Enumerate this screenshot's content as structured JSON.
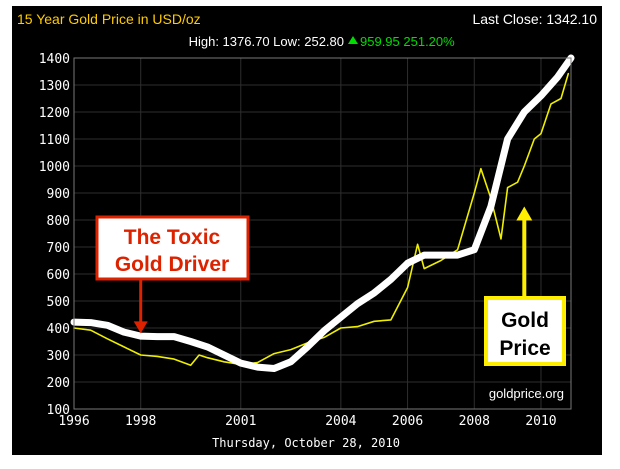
{
  "chart_data": {
    "type": "line",
    "title": "15 Year Gold Price in USD/oz",
    "last_close_label": "Last Close: 1342.10",
    "stats": {
      "high_low": "High: 1376.70 Low: 252.80",
      "change": "959.95 251.20%"
    },
    "date_label": "Thursday, October 28, 2010",
    "watermark": "goldprice.org",
    "x_ticks": [
      1996,
      1998,
      2001,
      2004,
      2006,
      2008,
      2010
    ],
    "y_ticks": [
      100,
      200,
      300,
      400,
      500,
      600,
      700,
      800,
      900,
      1000,
      1100,
      1200,
      1300,
      1400
    ],
    "xlim": [
      1996,
      2010.9
    ],
    "ylim": [
      100,
      1400
    ],
    "grid": true,
    "colors": {
      "background": "#000000",
      "grid": "#2e2e2e",
      "title": "#ffcc00",
      "text": "#ffffff",
      "up": "#00dd00",
      "gold_series": "#eeee00",
      "driver_series": "#ffffff",
      "toxic_box_border": "#dd2200",
      "toxic_box_text": "#dd2200",
      "toxic_arrow": "#dd2200",
      "gold_box_border": "#ffee00",
      "gold_box_text": "#000000",
      "gold_arrow": "#ffee00"
    },
    "series": [
      {
        "key": "gold",
        "x": [
          1996.0,
          1996.5,
          1997.0,
          1997.5,
          1998.0,
          1998.5,
          1999.0,
          1999.5,
          1999.75,
          2000.0,
          2000.5,
          2001.0,
          2001.5,
          2002.0,
          2002.5,
          2003.0,
          2003.5,
          2004.0,
          2004.5,
          2005.0,
          2005.5,
          2006.0,
          2006.3,
          2006.5,
          2007.0,
          2007.5,
          2008.0,
          2008.2,
          2008.5,
          2008.8,
          2009.0,
          2009.3,
          2009.5,
          2009.8,
          2010.0,
          2010.3,
          2010.6,
          2010.82
        ],
        "values": [
          400,
          392,
          360,
          330,
          300,
          295,
          285,
          262,
          300,
          290,
          275,
          265,
          272,
          305,
          320,
          345,
          365,
          400,
          405,
          425,
          430,
          550,
          710,
          620,
          650,
          690,
          900,
          990,
          880,
          730,
          920,
          940,
          1000,
          1100,
          1120,
          1230,
          1250,
          1342
        ]
      },
      {
        "key": "driver",
        "x": [
          1996.0,
          1996.5,
          1997.0,
          1997.5,
          1998.0,
          1998.5,
          1999.0,
          1999.5,
          2000.0,
          2000.5,
          2001.0,
          2001.5,
          2002.0,
          2002.5,
          2003.0,
          2003.5,
          2004.0,
          2004.5,
          2005.0,
          2005.5,
          2006.0,
          2006.5,
          2007.0,
          2007.5,
          2008.0,
          2008.5,
          2009.0,
          2009.5,
          2010.0,
          2010.5,
          2010.9
        ],
        "values": [
          422,
          420,
          410,
          385,
          370,
          368,
          368,
          350,
          330,
          300,
          270,
          255,
          250,
          275,
          330,
          390,
          440,
          490,
          530,
          580,
          640,
          670,
          670,
          670,
          690,
          850,
          1100,
          1200,
          1260,
          1330,
          1400
        ]
      }
    ],
    "annotations": {
      "toxic": {
        "line1": "The Toxic",
        "line2": "Gold Driver",
        "arrow_x": 1998.0,
        "arrow_y": 380
      },
      "gold_price": {
        "line1": "Gold",
        "line2": "Price",
        "arrow_x": 2009.5,
        "arrow_y": 850
      }
    }
  }
}
